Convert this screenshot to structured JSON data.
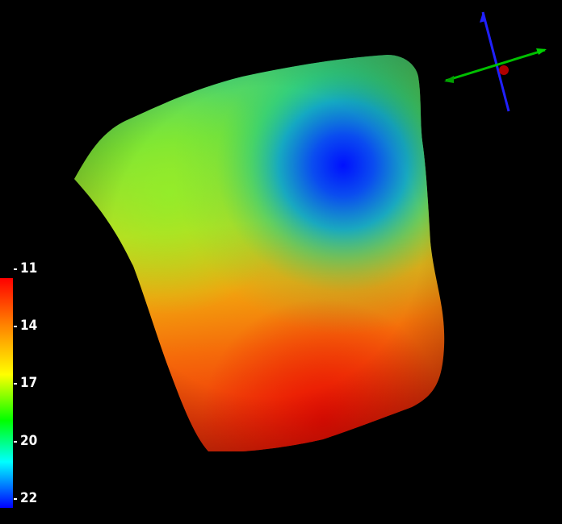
{
  "viewer": {
    "background_color": "#000000",
    "surface": {
      "colormap": "jet",
      "colormap_stops": [
        "#ff0000",
        "#ff8000",
        "#ffff00",
        "#00ff00",
        "#00ffff",
        "#0000ff"
      ]
    }
  },
  "colorbar": {
    "ticks": [
      {
        "label": "11"
      },
      {
        "label": "14"
      },
      {
        "label": "17"
      },
      {
        "label": "20"
      },
      {
        "label": "22"
      }
    ]
  },
  "axes": {
    "x_color": "#00d000",
    "y_color": "#2020ff",
    "z_color": "#c00000"
  }
}
